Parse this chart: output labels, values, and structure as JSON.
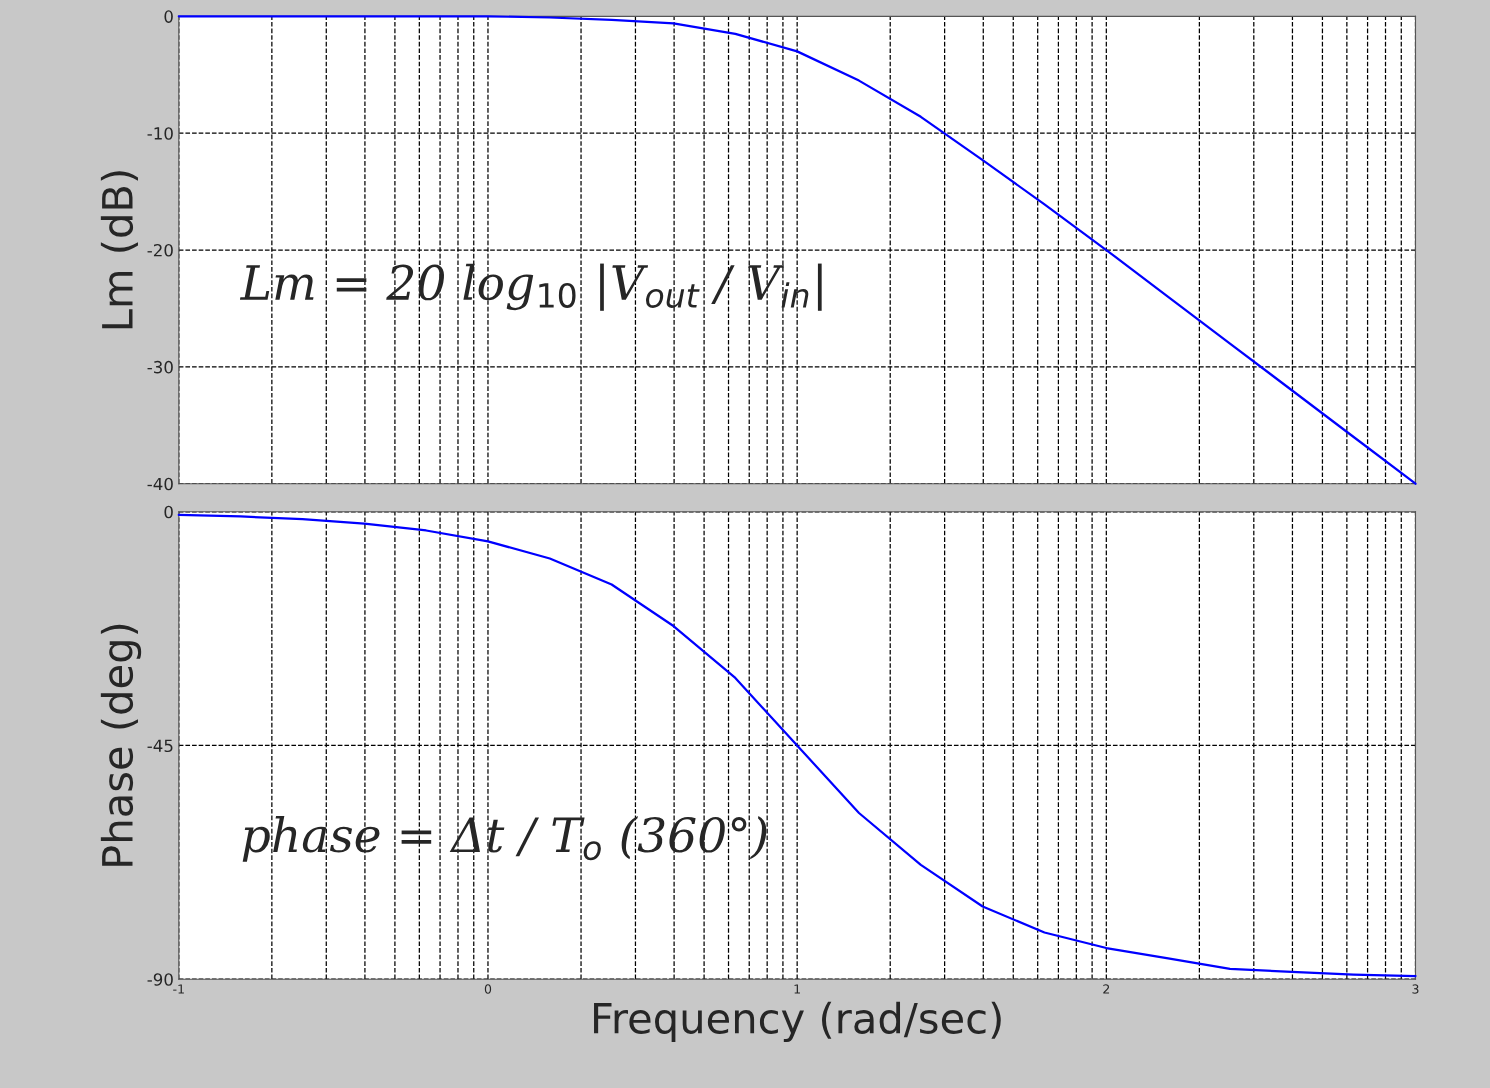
{
  "chart_data": [
    {
      "type": "line",
      "ylabel": "Lm (dB)",
      "xlim": [
        -1,
        3
      ],
      "xticks": [
        -1,
        {
          "value": -0.699,
          "label": null
        },
        {
          "value": -0.523,
          "label": null
        },
        {
          "value": -0.398,
          "label": null
        },
        {
          "value": -0.301,
          "label": null
        },
        {
          "value": -0.222,
          "label": null
        },
        {
          "value": -0.155,
          "label": null
        },
        {
          "value": -0.097,
          "label": null
        },
        {
          "value": -0.046,
          "label": null
        },
        0,
        {
          "value": 0.301,
          "label": null
        },
        {
          "value": 0.477,
          "label": null
        },
        {
          "value": 0.602,
          "label": null
        },
        {
          "value": 0.699,
          "label": null
        },
        {
          "value": 0.778,
          "label": null
        },
        {
          "value": 0.845,
          "label": null
        },
        {
          "value": 0.903,
          "label": null
        },
        {
          "value": 0.954,
          "label": null
        },
        1,
        {
          "value": 1.301,
          "label": null
        },
        {
          "value": 1.477,
          "label": null
        },
        {
          "value": 1.602,
          "label": null
        },
        {
          "value": 1.699,
          "label": null
        },
        {
          "value": 1.778,
          "label": null
        },
        {
          "value": 1.845,
          "label": null
        },
        {
          "value": 1.903,
          "label": null
        },
        {
          "value": 1.954,
          "label": null
        },
        2,
        {
          "value": 2.301,
          "label": null
        },
        {
          "value": 2.477,
          "label": null
        },
        {
          "value": 2.602,
          "label": null
        },
        {
          "value": 2.699,
          "label": null
        },
        {
          "value": 2.778,
          "label": null
        },
        {
          "value": 2.845,
          "label": null
        },
        {
          "value": 2.903,
          "label": null
        },
        {
          "value": 2.954,
          "label": null
        },
        3
      ],
      "ylim": [
        -40,
        0
      ],
      "yticks": [
        -40,
        -30,
        -20,
        -10,
        0
      ],
      "grid": true,
      "tick_labels": "y",
      "x": [
        -1,
        -0.8,
        -0.6,
        -0.4,
        -0.2,
        0,
        0.2,
        0.4,
        0.6,
        0.8,
        1,
        1.2,
        1.4,
        1.6,
        1.8,
        2,
        2.2,
        2.4,
        2.6,
        2.8,
        3
      ],
      "series": [
        {
          "color": "#0000ff",
          "values": [
            0,
            0,
            0,
            0,
            0,
            0,
            -0.1,
            -0.3,
            -0.6,
            -1.5,
            -3,
            -5.5,
            -8.6,
            -12.3,
            -16.1,
            -20,
            -24,
            -28,
            -32,
            -36,
            -40
          ]
        }
      ],
      "annotations": [
        "Lm = 20 log$_{10}$ |V$_{out}$ / V$_{in}$|"
      ]
    },
    {
      "type": "line",
      "ylabel": "Phase (deg)",
      "xlabel": "Frequency (rad/sec)",
      "xlim": [
        -1,
        3
      ],
      "xticks": [
        -1,
        {
          "value": -0.699,
          "label": null
        },
        {
          "value": -0.523,
          "label": null
        },
        {
          "value": -0.398,
          "label": null
        },
        {
          "value": -0.301,
          "label": null
        },
        {
          "value": -0.222,
          "label": null
        },
        {
          "value": -0.155,
          "label": null
        },
        {
          "value": -0.097,
          "label": null
        },
        {
          "value": -0.046,
          "label": null
        },
        0,
        {
          "value": 0.301,
          "label": null
        },
        {
          "value": 0.477,
          "label": null
        },
        {
          "value": 0.602,
          "label": null
        },
        {
          "value": 0.699,
          "label": null
        },
        {
          "value": 0.778,
          "label": null
        },
        {
          "value": 0.845,
          "label": null
        },
        {
          "value": 0.903,
          "label": null
        },
        {
          "value": 0.954,
          "label": null
        },
        1,
        {
          "value": 1.301,
          "label": null
        },
        {
          "value": 1.477,
          "label": null
        },
        {
          "value": 1.602,
          "label": null
        },
        {
          "value": 1.699,
          "label": null
        },
        {
          "value": 1.778,
          "label": null
        },
        {
          "value": 1.845,
          "label": null
        },
        {
          "value": 1.903,
          "label": null
        },
        {
          "value": 1.954,
          "label": null
        },
        2,
        {
          "value": 2.301,
          "label": null
        },
        {
          "value": 2.477,
          "label": null
        },
        {
          "value": 2.602,
          "label": null
        },
        {
          "value": 2.699,
          "label": null
        },
        {
          "value": 2.778,
          "label": null
        },
        {
          "value": 2.845,
          "label": null
        },
        {
          "value": 2.903,
          "label": null
        },
        {
          "value": 2.954,
          "label": null
        },
        3
      ],
      "ylim": [
        -90,
        0
      ],
      "yticks": [
        -90,
        -45,
        0
      ],
      "grid": true,
      "x": [
        -1,
        -0.8,
        -0.6,
        -0.4,
        -0.2,
        0,
        0.2,
        0.4,
        0.6,
        0.8,
        1,
        1.2,
        1.4,
        1.6,
        1.8,
        2,
        2.2,
        2.4,
        2.6,
        2.8,
        3
      ],
      "series": [
        {
          "color": "#0000ff",
          "values": [
            -0.6,
            -0.9,
            -1.4,
            -2.3,
            -3.6,
            -5.7,
            -9,
            -14,
            -22,
            -32,
            -45,
            -58,
            -68,
            -76,
            -81,
            -84,
            -86,
            -88,
            -88.6,
            -89.1,
            -89.4
          ]
        }
      ],
      "annotations": [
        "phase = Δt / T$_{o}$ (360°)"
      ]
    }
  ]
}
